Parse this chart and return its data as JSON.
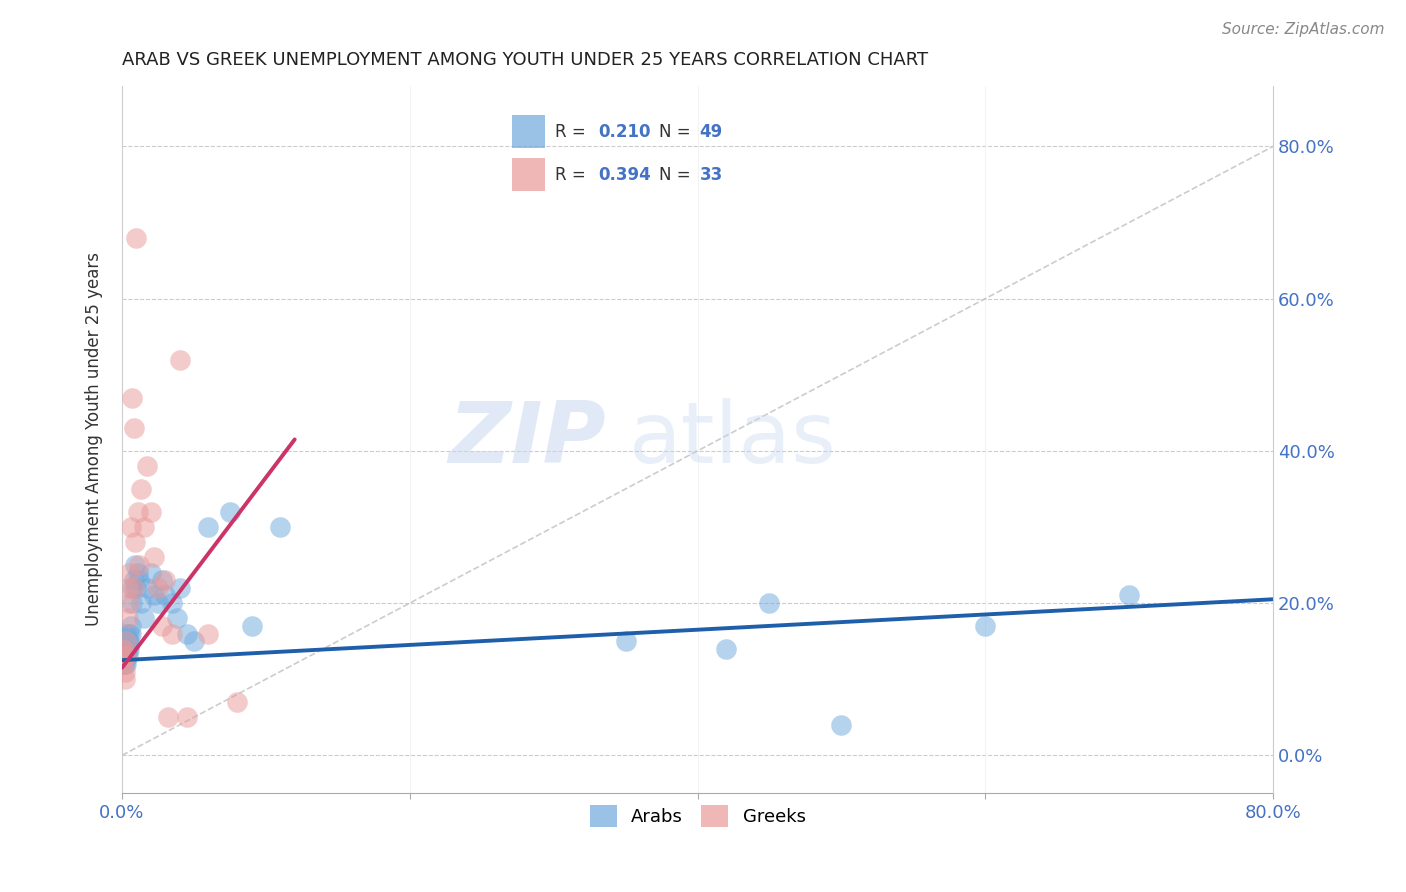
{
  "title": "ARAB VS GREEK UNEMPLOYMENT AMONG YOUTH UNDER 25 YEARS CORRELATION CHART",
  "source": "Source: ZipAtlas.com",
  "ylabel": "Unemployment Among Youth under 25 years",
  "xlim": [
    0.0,
    0.8
  ],
  "ylim": [
    -0.05,
    0.88
  ],
  "arab_color": "#6fa8dc",
  "greek_color": "#ea9999",
  "arab_line_color": "#1f5faa",
  "greek_line_color": "#cc3366",
  "diag_line_color": "#c0c0c0",
  "R_arab": 0.21,
  "N_arab": 49,
  "R_greek": 0.394,
  "N_greek": 33,
  "watermark_zip": "ZIP",
  "watermark_atlas": "atlas",
  "arab_line_x0": 0.0,
  "arab_line_x1": 0.8,
  "arab_line_y0": 0.125,
  "arab_line_y1": 0.205,
  "greek_line_x0": 0.0,
  "greek_line_x1": 0.12,
  "greek_line_y0": 0.115,
  "greek_line_y1": 0.415,
  "arab_x": [
    0.001,
    0.001,
    0.001,
    0.002,
    0.002,
    0.002,
    0.002,
    0.003,
    0.003,
    0.003,
    0.003,
    0.004,
    0.004,
    0.004,
    0.005,
    0.005,
    0.005,
    0.006,
    0.006,
    0.007,
    0.007,
    0.008,
    0.009,
    0.01,
    0.011,
    0.012,
    0.013,
    0.015,
    0.017,
    0.02,
    0.022,
    0.025,
    0.028,
    0.03,
    0.035,
    0.038,
    0.04,
    0.045,
    0.05,
    0.06,
    0.075,
    0.09,
    0.11,
    0.35,
    0.42,
    0.5,
    0.6,
    0.7,
    0.45
  ],
  "arab_y": [
    0.14,
    0.13,
    0.12,
    0.14,
    0.13,
    0.15,
    0.12,
    0.14,
    0.13,
    0.16,
    0.12,
    0.15,
    0.14,
    0.13,
    0.16,
    0.15,
    0.14,
    0.17,
    0.16,
    0.22,
    0.2,
    0.23,
    0.25,
    0.22,
    0.24,
    0.23,
    0.2,
    0.18,
    0.22,
    0.24,
    0.21,
    0.2,
    0.23,
    0.21,
    0.2,
    0.18,
    0.22,
    0.16,
    0.15,
    0.3,
    0.32,
    0.17,
    0.3,
    0.15,
    0.14,
    0.04,
    0.17,
    0.21,
    0.2
  ],
  "greek_x": [
    0.001,
    0.001,
    0.002,
    0.002,
    0.002,
    0.003,
    0.003,
    0.004,
    0.004,
    0.005,
    0.005,
    0.006,
    0.007,
    0.008,
    0.008,
    0.009,
    0.01,
    0.011,
    0.012,
    0.013,
    0.015,
    0.017,
    0.02,
    0.022,
    0.025,
    0.028,
    0.03,
    0.032,
    0.035,
    0.04,
    0.045,
    0.06,
    0.08
  ],
  "greek_y": [
    0.14,
    0.12,
    0.13,
    0.11,
    0.1,
    0.15,
    0.13,
    0.18,
    0.22,
    0.2,
    0.24,
    0.3,
    0.47,
    0.43,
    0.22,
    0.28,
    0.68,
    0.32,
    0.25,
    0.35,
    0.3,
    0.38,
    0.32,
    0.26,
    0.22,
    0.17,
    0.23,
    0.05,
    0.16,
    0.52,
    0.05,
    0.16,
    0.07
  ]
}
